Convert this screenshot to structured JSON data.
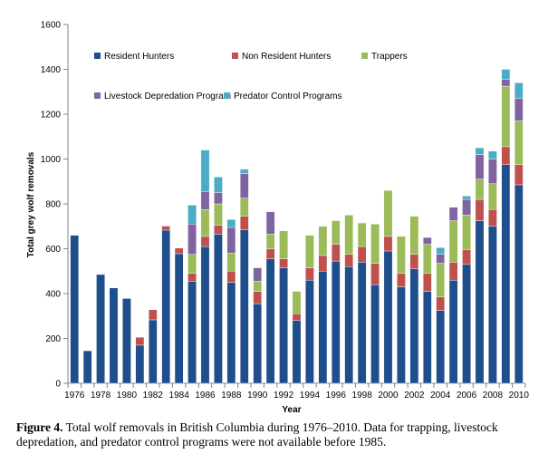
{
  "caption": {
    "label": "Figure 4.",
    "text": " Total wolf removals in British Columbia during 1976–2010. Data for trapping, livestock depredation, and predator control programs were not available before 1985."
  },
  "colors": {
    "Resident Hunters": "#1f4e8c",
    "Non Resident Hunters": "#c0504d",
    "Trappers": "#9bbb59",
    "Livestock Depredation Program": "#8064a2",
    "Predator Control Programs": "#4bacc6"
  },
  "chart_data": {
    "type": "bar",
    "stacked": true,
    "xlabel": "Year",
    "ylabel": "Total grey wolf removals",
    "ylim": [
      0,
      1600
    ],
    "yticks": [
      0,
      200,
      400,
      600,
      800,
      1000,
      1200,
      1400,
      1600
    ],
    "grid": false,
    "legend": "top-left inside plot",
    "categories": [
      "1976",
      "1977",
      "1978",
      "1979",
      "1980",
      "1981",
      "1982",
      "1983",
      "1984",
      "1985",
      "1986",
      "1987",
      "1988",
      "1989",
      "1990",
      "1991",
      "1992",
      "1993",
      "1994",
      "1995",
      "1996",
      "1997",
      "1998",
      "1999",
      "2000",
      "2001",
      "2002",
      "2003",
      "2004",
      "2005",
      "2006",
      "2007",
      "2008",
      "2009",
      "2010"
    ],
    "xtick_labels": [
      "1976",
      "1978",
      "1980",
      "1982",
      "1984",
      "1986",
      "1988",
      "1990",
      "1992",
      "1994",
      "1996",
      "1998",
      "2000",
      "2002",
      "2004",
      "2006",
      "2008",
      "2010"
    ],
    "series": [
      {
        "name": "Resident Hunters",
        "values": [
          660,
          145,
          485,
          425,
          378,
          170,
          283,
          683,
          578,
          455,
          610,
          665,
          450,
          685,
          355,
          555,
          515,
          280,
          460,
          500,
          545,
          520,
          540,
          440,
          590,
          430,
          510,
          410,
          325,
          460,
          530,
          725,
          700,
          975,
          885
        ]
      },
      {
        "name": "Non Resident Hunters",
        "values": [
          0,
          0,
          0,
          0,
          0,
          35,
          45,
          18,
          25,
          35,
          45,
          40,
          50,
          60,
          55,
          45,
          40,
          30,
          55,
          70,
          75,
          55,
          70,
          95,
          65,
          60,
          65,
          80,
          60,
          80,
          65,
          95,
          75,
          80,
          90
        ]
      },
      {
        "name": "Trappers",
        "values": [
          0,
          0,
          0,
          0,
          0,
          0,
          0,
          0,
          0,
          85,
          120,
          95,
          80,
          80,
          45,
          65,
          125,
          100,
          145,
          130,
          105,
          175,
          105,
          175,
          205,
          165,
          170,
          130,
          150,
          185,
          155,
          90,
          115,
          270,
          195
        ]
      },
      {
        "name": "Livestock Depredation Program",
        "values": [
          0,
          0,
          0,
          0,
          0,
          0,
          0,
          0,
          0,
          135,
          80,
          50,
          115,
          110,
          60,
          100,
          0,
          0,
          0,
          0,
          0,
          0,
          0,
          0,
          0,
          0,
          0,
          30,
          40,
          60,
          70,
          110,
          110,
          30,
          100
        ]
      },
      {
        "name": "Predator Control Programs",
        "values": [
          0,
          0,
          0,
          0,
          0,
          0,
          0,
          0,
          0,
          85,
          185,
          70,
          35,
          20,
          0,
          0,
          0,
          0,
          0,
          0,
          0,
          0,
          0,
          0,
          0,
          0,
          0,
          0,
          30,
          0,
          15,
          30,
          35,
          45,
          70
        ]
      }
    ]
  }
}
